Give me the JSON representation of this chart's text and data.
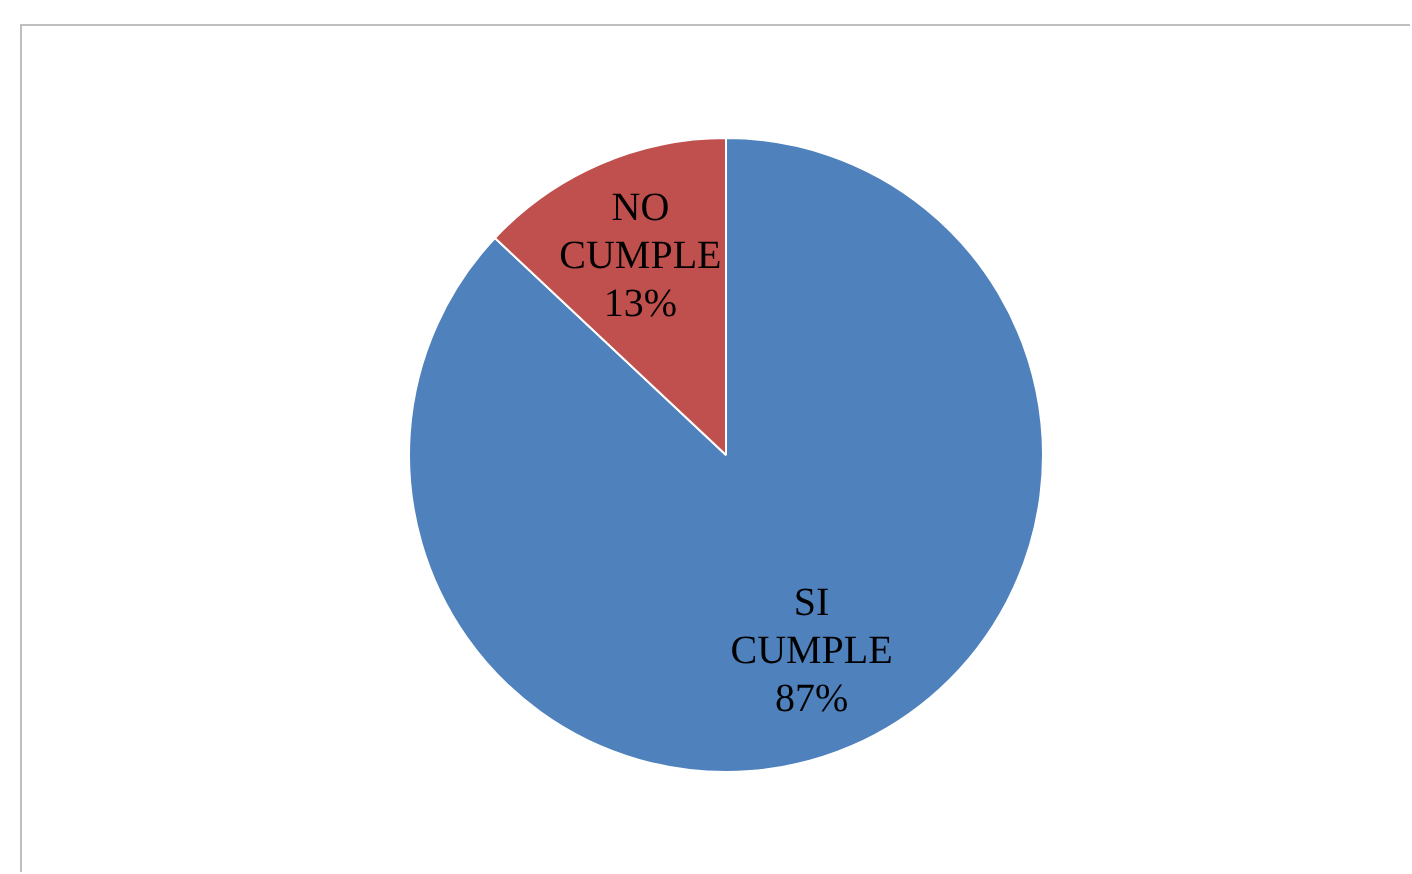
{
  "chart_data": {
    "type": "pie",
    "categories": [
      "SI CUMPLE",
      "NO CUMPLE"
    ],
    "values": [
      87,
      13
    ],
    "colors": [
      "#4f81bd",
      "#c0504d"
    ],
    "value_labels": [
      "87%",
      "13%"
    ],
    "legend": false
  }
}
